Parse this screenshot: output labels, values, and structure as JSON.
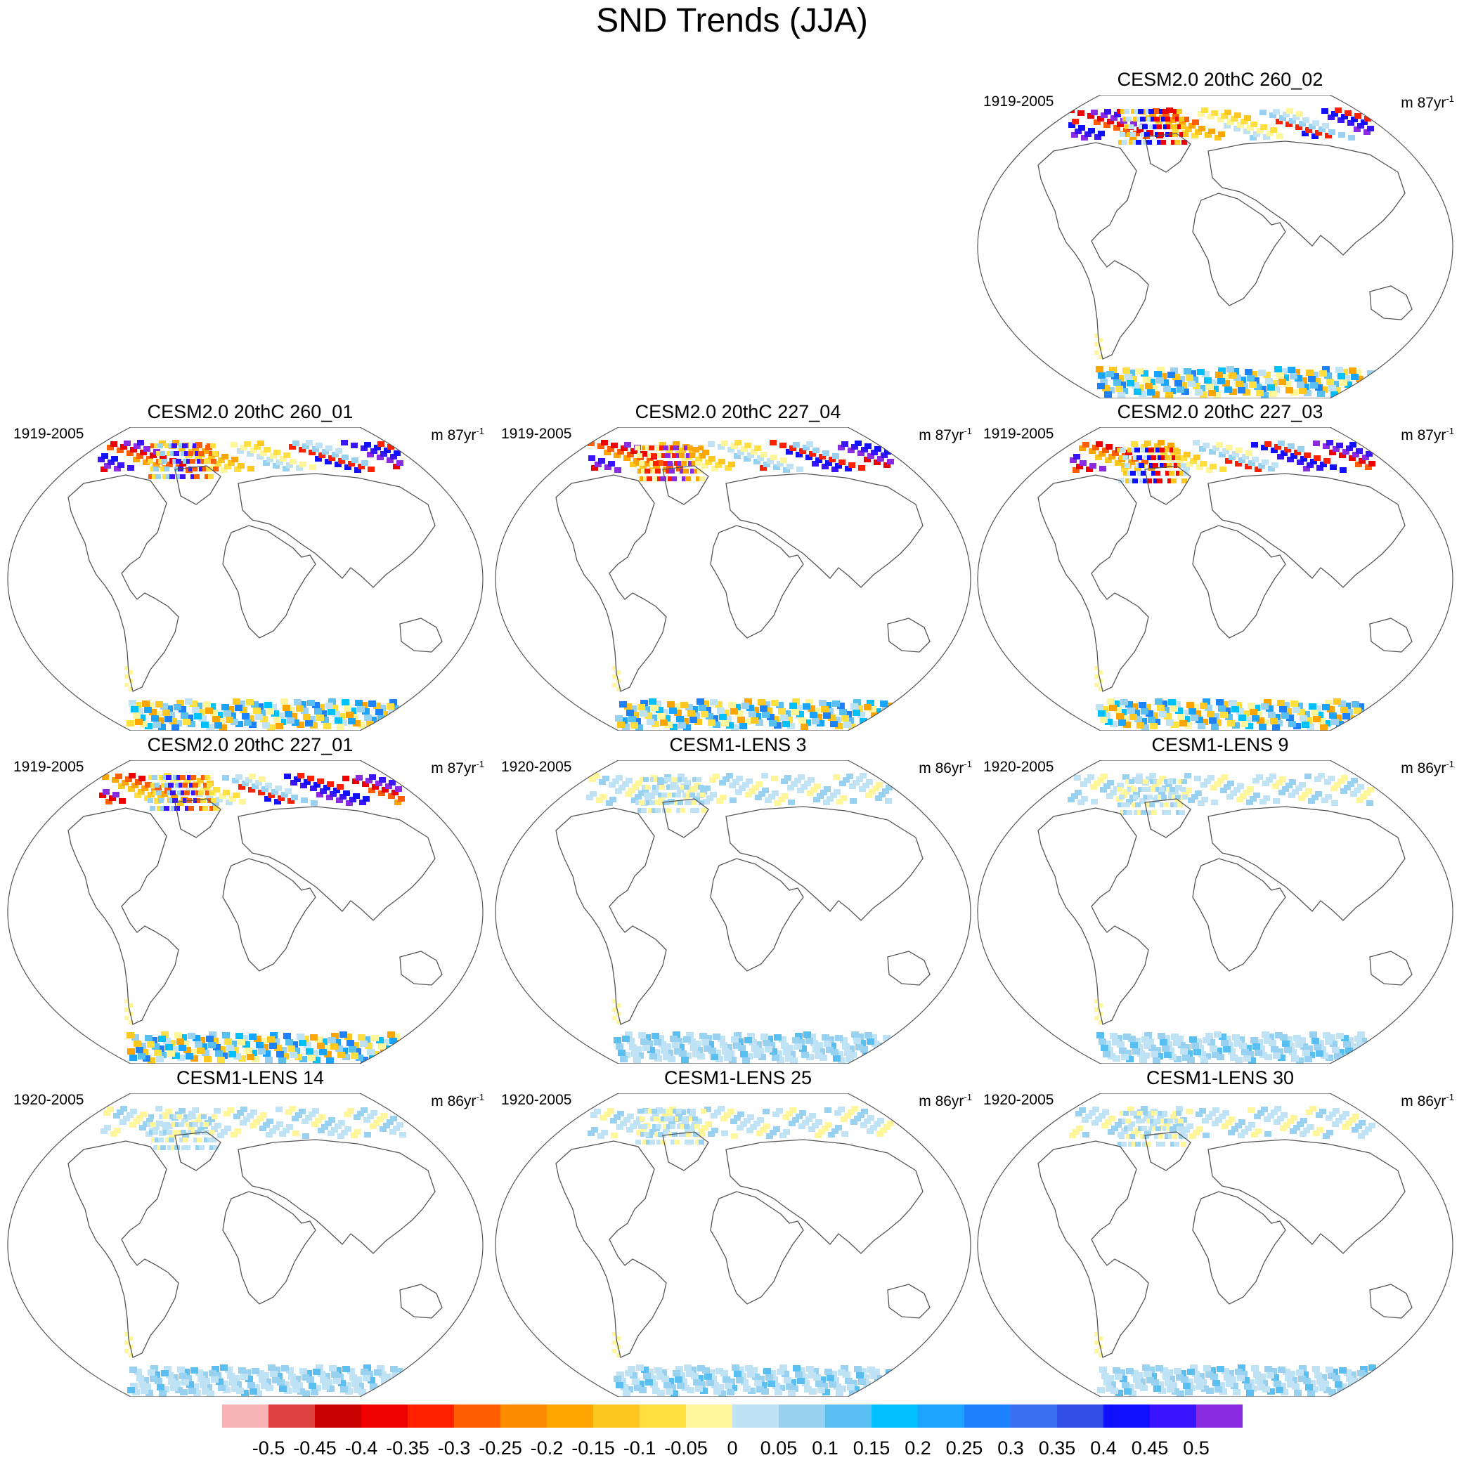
{
  "title": "SND Trends (JJA)",
  "panels": [
    {
      "title": "CESM2.0 20thC 260_02",
      "years": "1919-2005",
      "units": "m 87yr",
      "units_exp": "-1"
    },
    {
      "title": "CESM2.0 20thC 260_01",
      "years": "1919-2005",
      "units": "m 87yr",
      "units_exp": "-1"
    },
    {
      "title": "CESM2.0 20thC 227_04",
      "years": "1919-2005",
      "units": "m 87yr",
      "units_exp": "-1"
    },
    {
      "title": "CESM2.0 20thC 227_03",
      "years": "1919-2005",
      "units": "m 87yr",
      "units_exp": "-1"
    },
    {
      "title": "CESM2.0 20thC 227_01",
      "years": "1919-2005",
      "units": "m 87yr",
      "units_exp": "-1"
    },
    {
      "title": "CESM1-LENS 3",
      "years": "1920-2005",
      "units": "m 86yr",
      "units_exp": "-1"
    },
    {
      "title": "CESM1-LENS 9",
      "years": "1920-2005",
      "units": "m 86yr",
      "units_exp": "-1"
    },
    {
      "title": "CESM1-LENS 14",
      "years": "1920-2005",
      "units": "m 86yr",
      "units_exp": "-1"
    },
    {
      "title": "CESM1-LENS 25",
      "years": "1920-2005",
      "units": "m 86yr",
      "units_exp": "-1"
    },
    {
      "title": "CESM1-LENS 30",
      "years": "1920-2005",
      "units": "m 86yr",
      "units_exp": "-1"
    }
  ],
  "colorbar": {
    "labels": [
      "-0.5",
      "-0.45",
      "-0.4",
      "-0.35",
      "-0.3",
      "-0.25",
      "-0.2",
      "-0.15",
      "-0.1",
      "-0.05",
      "0",
      "0.05",
      "0.1",
      "0.15",
      "0.2",
      "0.25",
      "0.3",
      "0.35",
      "0.4",
      "0.45",
      "0.5"
    ],
    "colors": [
      "#f8b4b4",
      "#de3f3f",
      "#c80000",
      "#ee0000",
      "#ff2000",
      "#ff5f00",
      "#ff8c00",
      "#ffa500",
      "#ffc820",
      "#ffe040",
      "#fff59a",
      "#bfe3f5",
      "#98d2f0",
      "#58bff0",
      "#00c0ff",
      "#1aa4ff",
      "#1e82ff",
      "#3a6ff0",
      "#3050e6",
      "#1010ff",
      "#3b14ff",
      "#8a2be2"
    ]
  }
}
